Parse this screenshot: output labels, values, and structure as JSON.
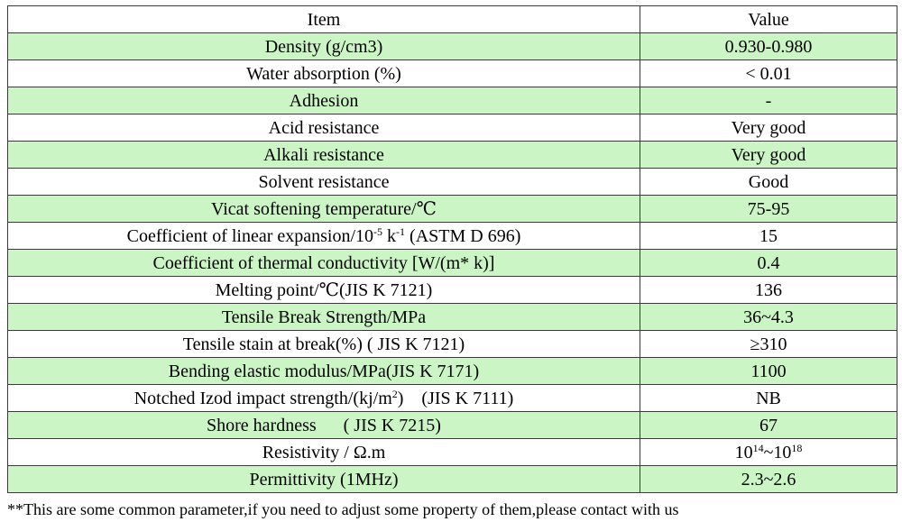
{
  "table": {
    "headers": {
      "item": "Item",
      "value": "Value"
    },
    "rows": [
      {
        "item": "Density (g/cm3)",
        "value": "0.930-0.980"
      },
      {
        "item": "Water absorption (%)",
        "value": "< 0.01"
      },
      {
        "item": "Adhesion",
        "value": "-"
      },
      {
        "item": "Acid resistance",
        "value": "Very good"
      },
      {
        "item": "Alkali resistance",
        "value": "Very good"
      },
      {
        "item": "Solvent resistance",
        "value": "Good"
      },
      {
        "item": "Vicat softening temperature/℃",
        "value": "75-95"
      },
      {
        "item_pre": "Coefficient of linear expansion/10",
        "item_sup1": "-5",
        "item_mid": " k",
        "item_sup2": "-1",
        "item_post": " (ASTM D 696)",
        "value": "15"
      },
      {
        "item": "Coefficient of thermal conductivity [W/(m* k)]",
        "value": "0.4"
      },
      {
        "item": "Melting point/℃(JIS K 7121)",
        "value": "136"
      },
      {
        "item": "Tensile Break Strength/MPa",
        "value": "36~4.3"
      },
      {
        "item": "Tensile stain at break(%) ( JIS K 7121)",
        "value": "≥310"
      },
      {
        "item": "Bending elastic modulus/MPa(JIS K 7171)",
        "value": "1100"
      },
      {
        "item_pre": "Notched Izod impact strength/(kj/m",
        "item_sup1": "2",
        "item_post": ")    (JIS K 7111)",
        "value": "NB"
      },
      {
        "item": "Shore hardness      ( JIS K 7215)",
        "value": "67"
      },
      {
        "item": "Resistivity / Ω.m",
        "value_pre": "10",
        "value_sup1": "14",
        "value_mid": "~10",
        "value_sup2": "18"
      },
      {
        "item": "Permittivity (1MHz)",
        "value": "2.3~2.6"
      }
    ]
  },
  "footnote": "**This are some common parameter,if you need to adjust some property of them,please contact with us",
  "colors": {
    "green_row": "#ccf5c6",
    "white_row": "#ffffff",
    "border": "#3a3a3a"
  }
}
